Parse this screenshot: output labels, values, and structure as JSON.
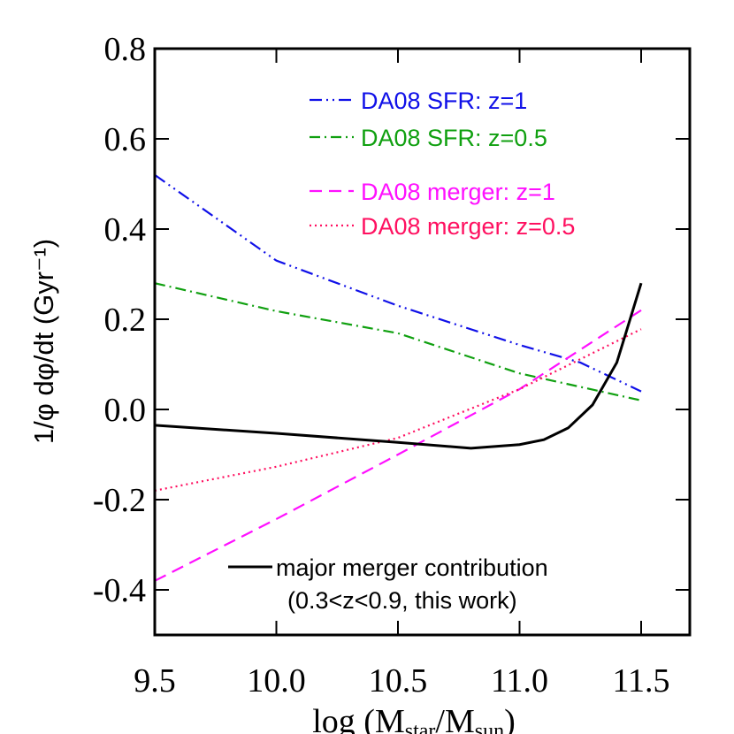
{
  "chart_data": {
    "type": "line",
    "y_label": "1/φ dφ/dt (Gyr⁻¹)",
    "x_label_parts": [
      "log (M",
      "star",
      "/M",
      "sun",
      ")"
    ],
    "xlim": [
      9.5,
      11.7
    ],
    "ylim": [
      -0.5,
      0.8
    ],
    "xticks": [
      9.5,
      {
        "value": 10,
        "label": "10.0"
      },
      10.5,
      {
        "value": 11,
        "label": "11.0"
      },
      11.5
    ],
    "yticks": [
      0.8,
      0.6,
      0.4,
      0.2,
      {
        "value": 0,
        "label": "0.0"
      },
      -0.2,
      -0.4
    ],
    "series": [
      {
        "name": "DA08 SFR: z=1",
        "color": "#1010e8",
        "dash": "14 5 2 5 2 5",
        "x": [
          9.5,
          10.0,
          10.5,
          11.0,
          11.25,
          11.5
        ],
        "values": [
          0.52,
          0.33,
          0.23,
          0.143,
          0.104,
          0.04
        ]
      },
      {
        "name": "DA08 SFR: z=0.5",
        "color": "#10a010",
        "dash": "12 5 2 5",
        "x": [
          9.5,
          10.0,
          10.5,
          11.0,
          11.5
        ],
        "values": [
          0.28,
          0.218,
          0.169,
          0.08,
          0.02
        ]
      },
      {
        "name": "DA08 merger: z=1",
        "color": "#ff10ff",
        "dash": "14 8",
        "x": [
          9.5,
          10.0,
          10.5,
          11.0,
          11.5
        ],
        "values": [
          -0.38,
          -0.243,
          -0.1,
          0.045,
          0.22
        ]
      },
      {
        "name": "DA08 merger: z=0.5",
        "color": "#ff1060",
        "dash": "2 4",
        "x": [
          9.5,
          10.0,
          10.5,
          11.0,
          11.5
        ],
        "values": [
          -0.18,
          -0.127,
          -0.063,
          0.045,
          0.178
        ]
      },
      {
        "name": "major merger contribution",
        "color": "#000000",
        "dash": "",
        "x": [
          9.5,
          10.0,
          10.5,
          10.8,
          11.0,
          11.1,
          11.2,
          11.3,
          11.4,
          11.5
        ],
        "values": [
          -0.035,
          -0.053,
          -0.073,
          -0.086,
          -0.078,
          -0.067,
          -0.041,
          0.01,
          0.104,
          0.28
        ]
      }
    ],
    "annotation": "(0.3<z<0.9, this work)"
  }
}
